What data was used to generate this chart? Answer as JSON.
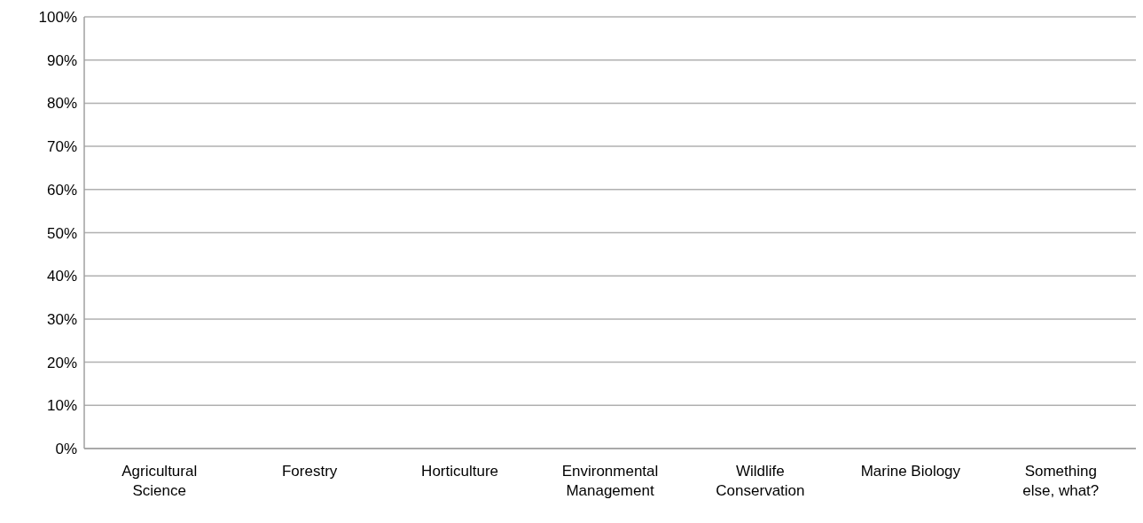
{
  "chart_data": {
    "type": "bar",
    "categories": [
      "Agricultural Science",
      "Forestry",
      "Horticulture",
      "Environmental Management",
      "Wildlife Conservation",
      "Marine Biology",
      "Something else, what?"
    ],
    "values": [
      0,
      0,
      0,
      0,
      0,
      0,
      0
    ],
    "ylim": [
      0,
      100
    ],
    "yticks": [
      {
        "value": 0,
        "label": "0%"
      },
      {
        "value": 10,
        "label": "10%"
      },
      {
        "value": 20,
        "label": "20%"
      },
      {
        "value": 30,
        "label": "30%"
      },
      {
        "value": 40,
        "label": "40%"
      },
      {
        "value": 50,
        "label": "50%"
      },
      {
        "value": 60,
        "label": "60%"
      },
      {
        "value": 70,
        "label": "70%"
      },
      {
        "value": 80,
        "label": "80%"
      },
      {
        "value": 90,
        "label": "90%"
      },
      {
        "value": 100,
        "label": "100%"
      }
    ],
    "grid": "y",
    "legend": false
  }
}
